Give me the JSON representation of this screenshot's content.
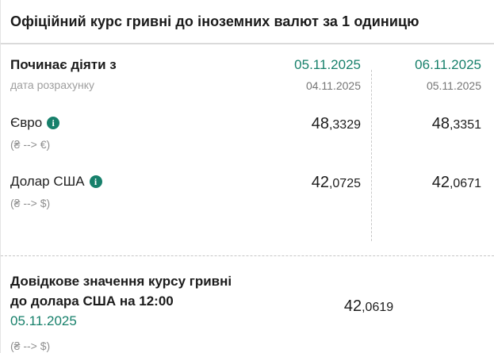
{
  "header": {
    "title": "Офіційний курс гривні до іноземних валют за 1 одиницю"
  },
  "rates": {
    "row_header": {
      "label": "Починає діяти з",
      "sublabel": "дата розрахунку",
      "cols": [
        {
          "effective_date": "05.11.2025",
          "calc_date": "04.11.2025"
        },
        {
          "effective_date": "06.11.2025",
          "calc_date": "05.11.2025"
        }
      ]
    },
    "currencies": [
      {
        "name": "Євро",
        "pair": "(₴ --> €)",
        "values": [
          {
            "int": "48",
            "frac": ",3329"
          },
          {
            "int": "48",
            "frac": ",3351"
          }
        ]
      },
      {
        "name": "Долар США",
        "pair": "(₴ --> $)",
        "values": [
          {
            "int": "42",
            "frac": ",0725"
          },
          {
            "int": "42",
            "frac": ",0671"
          }
        ]
      }
    ]
  },
  "reference": {
    "label": "Довідкове значення курсу гривні до долара США на 12:00",
    "date": "05.11.2025",
    "pair": "(₴ --> $)",
    "value": {
      "int": "42",
      "frac": ",0619"
    }
  },
  "icons": {
    "info_glyph": "i"
  },
  "colors": {
    "accent_green": "#17806b",
    "text_dark": "#1c1c1c",
    "text_gray": "#8f8f8f"
  }
}
